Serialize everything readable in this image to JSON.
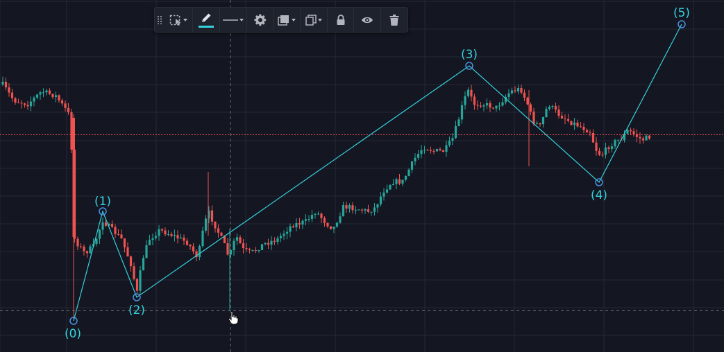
{
  "colors": {
    "background": "#141722",
    "grid": "#262a36",
    "wave_line": "#36d1dc",
    "candle_up": "#26a69a",
    "candle_down": "#ef5350",
    "price_line": "#ef5350",
    "toolbar_bg": "#1e222d",
    "toolbar_icon": "#b2b5be",
    "line_color_swatch": "#36d1dc"
  },
  "toolbar": {
    "items": [
      {
        "name": "drag-handle-icon"
      },
      {
        "name": "selection-area-icon"
      },
      {
        "name": "pencil-icon"
      },
      {
        "name": "line-style-icon"
      },
      {
        "name": "gear-icon"
      },
      {
        "name": "layers-icon"
      },
      {
        "name": "clone-icon"
      },
      {
        "name": "lock-icon"
      },
      {
        "name": "eye-icon"
      },
      {
        "name": "trash-icon"
      }
    ]
  },
  "wave": {
    "labels": [
      "(0)",
      "(1)",
      "(2)",
      "(3)",
      "(4)",
      "(5)"
    ]
  }
}
